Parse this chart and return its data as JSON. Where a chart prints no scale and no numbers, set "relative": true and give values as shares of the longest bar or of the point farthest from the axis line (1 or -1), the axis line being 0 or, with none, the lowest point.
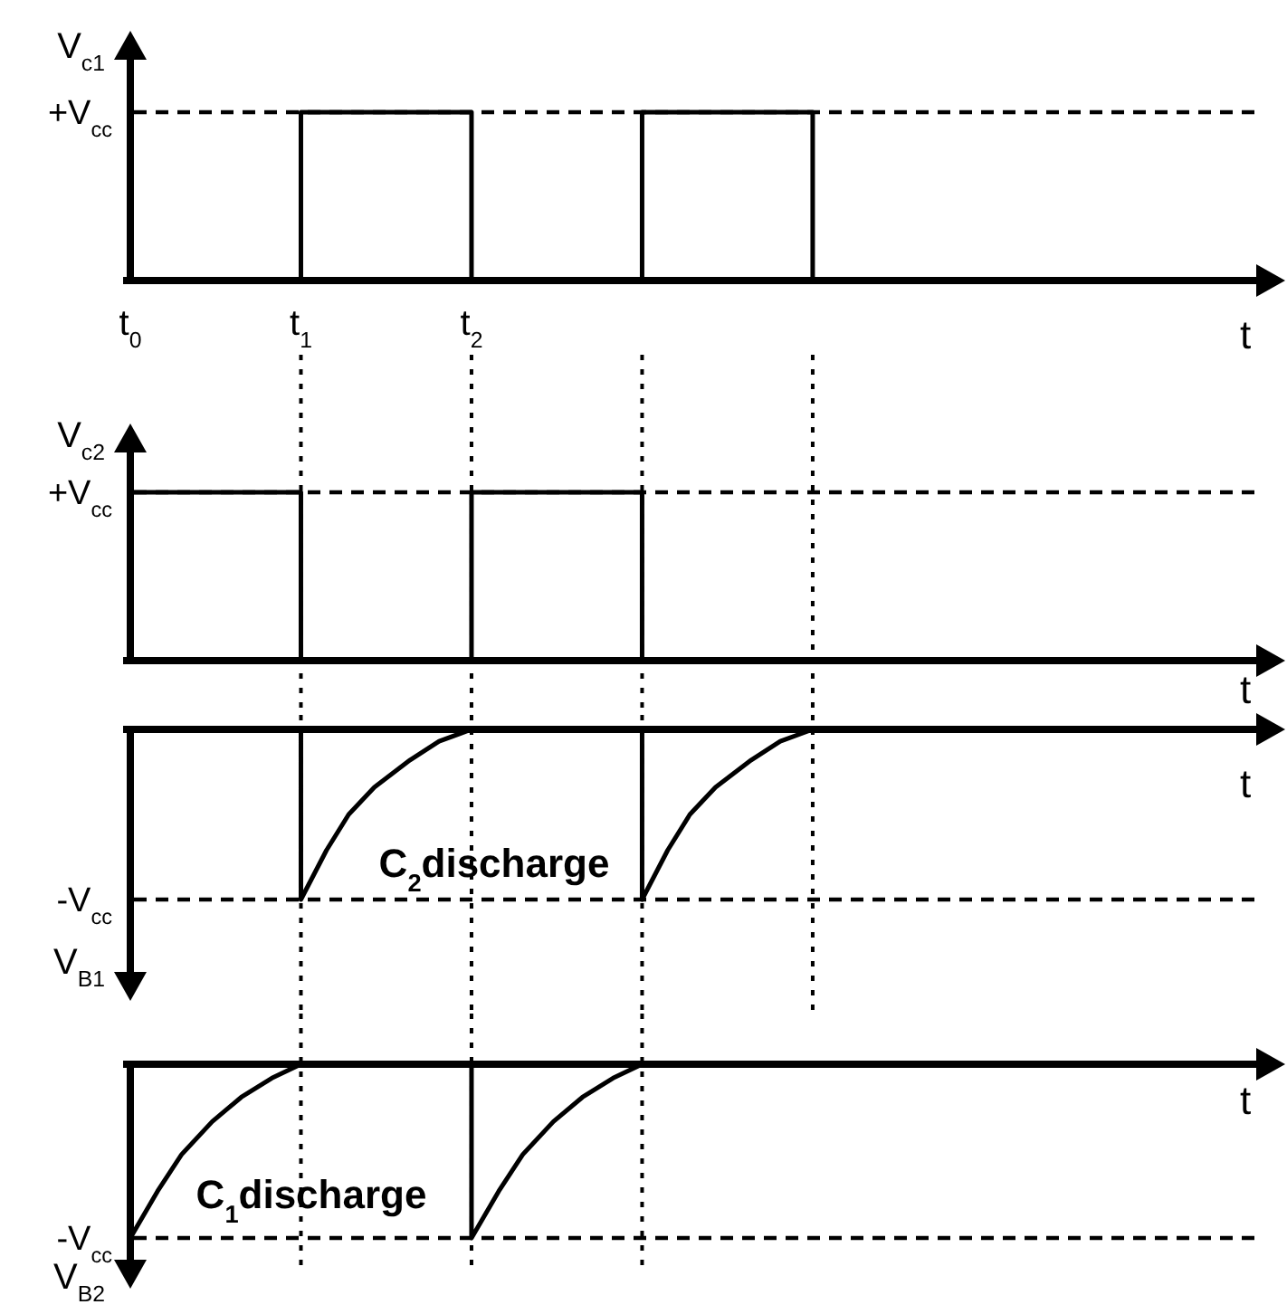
{
  "chart_data": [
    {
      "type": "step",
      "ylabel": "V$_{c1}$",
      "xlabel": "t",
      "relative": true,
      "x": [
        0,
        1,
        2,
        3,
        4
      ],
      "series": [
        {
          "color": "#000000",
          "values": [
            0,
            1,
            0,
            1,
            0
          ]
        }
      ],
      "xlim": [
        0,
        6.6
      ],
      "xticks": [
        {
          "value": 0,
          "label": "t$_{0}$"
        },
        {
          "value": 1,
          "label": "t$_{1}$"
        },
        {
          "value": 2,
          "label": "t$_{2}$"
        }
      ],
      "ref_lines": [
        {
          "axis": "y",
          "value": 1,
          "label": "+V$_{cc}$",
          "line_style": "dashed"
        }
      ]
    },
    {
      "type": "step",
      "ylabel": "V$_{c2}$",
      "xlabel": "t",
      "relative": true,
      "x": [
        0,
        1,
        2,
        3
      ],
      "series": [
        {
          "color": "#000000",
          "values": [
            1,
            0,
            1,
            0
          ]
        }
      ],
      "xlim": [
        0,
        6.6
      ],
      "tick_labels": false,
      "ref_lines": [
        {
          "axis": "y",
          "value": 1,
          "label": "+V$_{cc}$",
          "line_style": "dashed"
        },
        {
          "axis": "x",
          "value": 1,
          "label": null,
          "line_style": "dotted"
        },
        {
          "axis": "x",
          "value": 2,
          "label": null,
          "line_style": "dotted"
        },
        {
          "axis": "x",
          "value": 3,
          "label": null,
          "line_style": "dotted"
        },
        {
          "axis": "x",
          "value": 4,
          "label": null,
          "line_style": "dotted"
        }
      ]
    },
    {
      "type": "line",
      "ylabel": "V$_{B1}$",
      "xlabel": "t",
      "relative": true,
      "x": [
        0,
        1,
        1,
        1.15,
        1.28,
        1.43,
        1.64,
        1.81,
        2,
        3,
        3,
        3.15,
        3.28,
        3.43,
        3.64,
        3.81,
        4
      ],
      "series": [
        {
          "color": "#000000",
          "values": [
            0,
            0,
            -1,
            -0.71,
            -0.5,
            -0.34,
            -0.18,
            -0.07,
            0,
            0,
            -1,
            -0.71,
            -0.5,
            -0.34,
            -0.18,
            -0.07,
            0
          ]
        }
      ],
      "xlim": [
        0,
        6.6
      ],
      "tick_labels": false,
      "ref_lines": [
        {
          "axis": "y",
          "value": -1,
          "label": "-V$_{cc}$",
          "line_style": "dashed"
        },
        {
          "axis": "x",
          "value": 1,
          "label": null,
          "line_style": "dotted"
        },
        {
          "axis": "x",
          "value": 2,
          "label": null,
          "line_style": "dotted"
        },
        {
          "axis": "x",
          "value": 3,
          "label": null,
          "line_style": "dotted"
        },
        {
          "axis": "x",
          "value": 4,
          "label": null,
          "line_style": "dotted"
        }
      ],
      "annotations": [
        "C$_{2}$discharge"
      ]
    },
    {
      "type": "line",
      "ylabel": "V$_{B2}$",
      "xlabel": "t",
      "relative": true,
      "x": [
        0,
        0.16,
        0.3,
        0.48,
        0.65,
        0.83,
        1,
        2,
        2,
        2.16,
        2.3,
        2.48,
        2.65,
        2.83,
        3
      ],
      "series": [
        {
          "color": "#000000",
          "values": [
            -1,
            -0.73,
            -0.52,
            -0.33,
            -0.19,
            -0.08,
            0,
            0,
            -1,
            -0.73,
            -0.52,
            -0.33,
            -0.19,
            -0.08,
            0
          ]
        }
      ],
      "xlim": [
        0,
        6.6
      ],
      "tick_labels": false,
      "ref_lines": [
        {
          "axis": "y",
          "value": -1,
          "label": "-V$_{cc}$",
          "line_style": "dashed"
        },
        {
          "axis": "x",
          "value": 1,
          "label": null,
          "line_style": "dotted"
        },
        {
          "axis": "x",
          "value": 2,
          "label": null,
          "line_style": "dotted"
        },
        {
          "axis": "x",
          "value": 3,
          "label": null,
          "line_style": "dotted"
        }
      ],
      "annotations": [
        "C$_{1}$discharge"
      ]
    }
  ]
}
